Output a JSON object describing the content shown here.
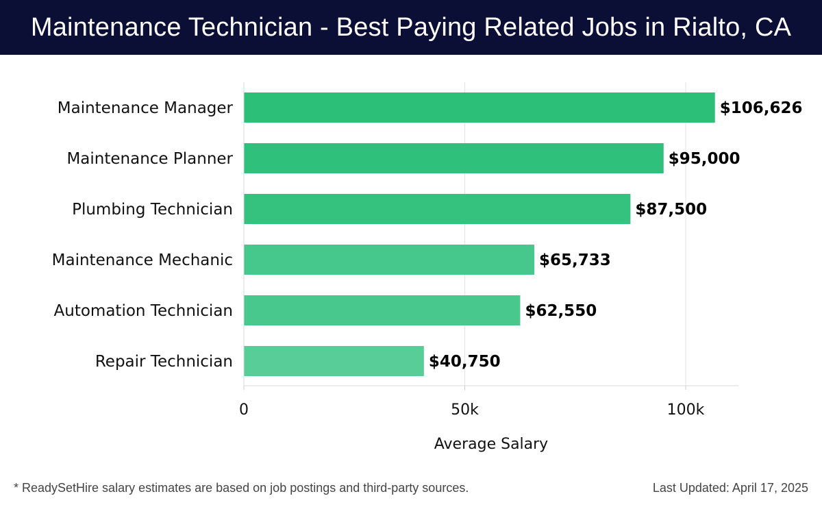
{
  "header": {
    "title": "Maintenance Technician - Best Paying Related Jobs in Rialto, CA"
  },
  "footer": {
    "note": "* ReadySetHire salary estimates are based on job postings and third-party sources.",
    "updated": "Last Updated: April 17, 2025"
  },
  "chart_data": {
    "type": "bar",
    "orientation": "horizontal",
    "title": "",
    "xlabel": "Average Salary",
    "ylabel": "",
    "xlim": [
      0,
      112000
    ],
    "grid": true,
    "categories": [
      "Maintenance Manager",
      "Maintenance Planner",
      "Plumbing Technician",
      "Maintenance Mechanic",
      "Automation Technician",
      "Repair Technician"
    ],
    "values": [
      106626,
      95000,
      87500,
      65733,
      62550,
      40750
    ],
    "value_labels": [
      "$106,626",
      "$95,000",
      "$87,500",
      "$65,733",
      "$62,550",
      "$40,750"
    ],
    "x_ticks": [
      0,
      50000,
      100000
    ],
    "x_tick_labels": [
      "0",
      "50k",
      "100k"
    ],
    "bar_colors": [
      "#2cbf78",
      "#2fc17b",
      "#34c27e",
      "#46c78b",
      "#49c88d",
      "#58cd97"
    ]
  }
}
